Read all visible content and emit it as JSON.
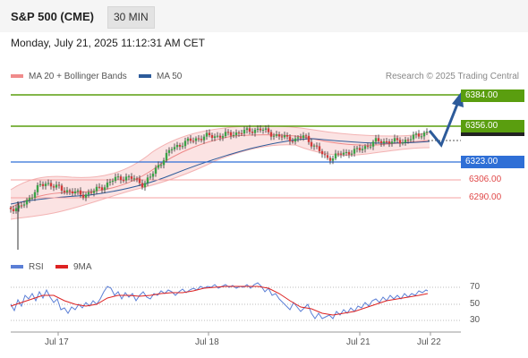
{
  "header": {
    "title": "S&P 500 (CME)",
    "timeframe": "30 MIN"
  },
  "datetime": "Monday, July 21, 2025 11:12:31 AM CET",
  "legend": {
    "bollinger_label": "MA 20 + Bollinger Bands",
    "ma50_label": "MA 50",
    "credit": "Research © 2025 Trading Central"
  },
  "levels": [
    {
      "value": "6384.00",
      "color": "#5a9e0f"
    },
    {
      "value": "6356.00",
      "color": "#5a9e0f"
    },
    {
      "value": "6323.00",
      "color": "#2f6fd6"
    },
    {
      "value": "6306.00",
      "color": "#e04848"
    },
    {
      "value": "6290.00",
      "color": "#e04848"
    }
  ],
  "rsi": {
    "rsi_label": "RSI",
    "ma_label": "9MA",
    "levels": [
      "70",
      "50",
      "30"
    ]
  },
  "x_labels": [
    "Jul 17",
    "Jul 18",
    "Jul 21",
    "Jul 22"
  ],
  "colors": {
    "ma50": "#2d5b9a",
    "bollinger": "#f08b8b",
    "rsi": "#5b7fd6",
    "rsi_ma": "#dd2222",
    "resistance": "#5a9e0f",
    "pivot": "#2f6fd6",
    "support": "#e04848"
  }
}
